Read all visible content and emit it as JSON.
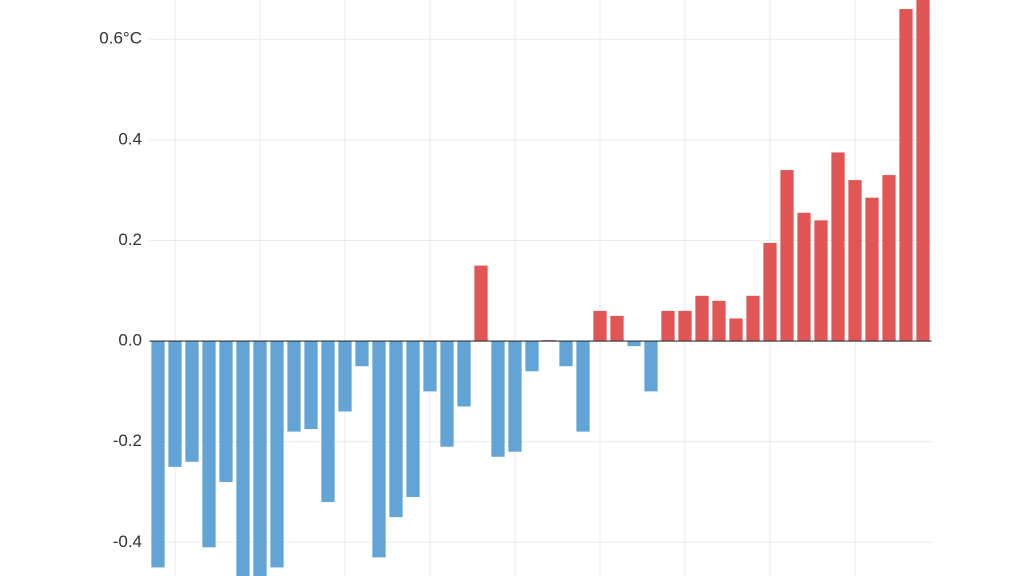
{
  "chart_data": {
    "type": "bar",
    "categories": [
      null,
      null,
      null,
      null,
      null,
      null,
      null,
      null,
      null,
      null,
      null,
      null,
      null,
      null,
      null,
      null,
      null,
      null,
      null,
      null,
      null,
      null,
      null,
      null,
      null,
      null,
      null,
      null,
      null,
      null,
      null,
      null,
      null,
      null,
      null,
      null,
      null,
      null,
      null,
      null,
      null,
      null,
      null,
      null,
      null,
      null
    ],
    "values": [
      -0.45,
      -0.25,
      -0.24,
      -0.41,
      -0.28,
      -0.47,
      -0.47,
      -0.45,
      -0.18,
      -0.175,
      -0.32,
      -0.14,
      -0.05,
      -0.43,
      -0.35,
      -0.31,
      -0.1,
      -0.21,
      -0.13,
      0.15,
      -0.23,
      -0.22,
      -0.06,
      0.002,
      -0.05,
      -0.18,
      0.06,
      0.05,
      -0.01,
      -0.1,
      0.06,
      0.06,
      0.09,
      0.08,
      0.045,
      0.09,
      0.195,
      0.34,
      0.255,
      0.24,
      0.375,
      0.32,
      0.285,
      0.33,
      0.66,
      0.69
    ],
    "positive_color": "#e05656",
    "negative_color": "#62a4d5",
    "ylim": [
      -0.467,
      0.678
    ],
    "yticks": [
      {
        "value": 0.6,
        "label": "0.6°C"
      },
      0.4,
      0.2,
      {
        "value": 0,
        "label": "0.0"
      },
      -0.2,
      -0.4
    ],
    "grid": true
  }
}
